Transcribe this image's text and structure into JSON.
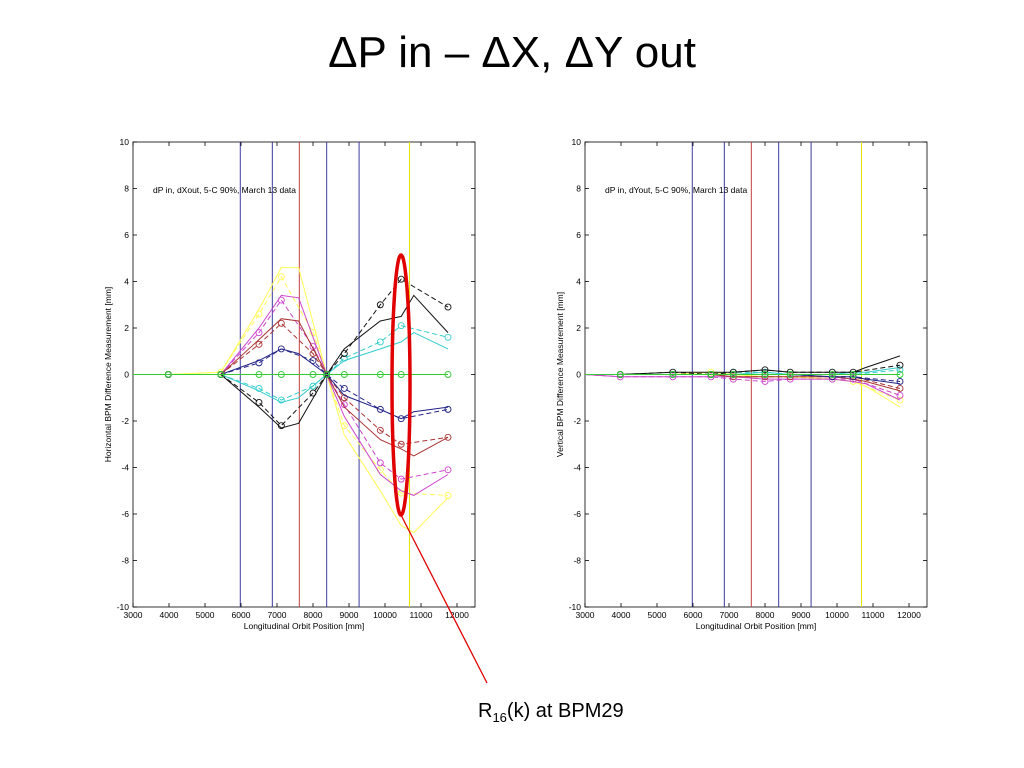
{
  "slide": {
    "title": "ΔP in – ΔX, ΔY out",
    "annotation": {
      "text_main": "R",
      "text_sub": "16",
      "text_rest": "(k) at BPM29",
      "color": "#e00000"
    }
  },
  "chart_data": [
    {
      "type": "line",
      "ylabel": "Horizontal BPM Difference Measurement [mm]",
      "xlabel": "Longitudinal Orbit Position [mm]",
      "annotation": "dP in, dXout, 5-C 90%, March 13 data",
      "xlim": [
        3000,
        12500
      ],
      "ylim": [
        -10,
        10
      ],
      "x_ticks": [
        "3000",
        "4000",
        "5000",
        "6000",
        "7000",
        "8000",
        "9000",
        "10000",
        "11000",
        "12000"
      ],
      "y_ticks": [
        "-10",
        "-8",
        "-6",
        "-4",
        "-2",
        "0",
        "2",
        "4",
        "6",
        "8",
        "10"
      ],
      "vlines": [
        {
          "x": 5980,
          "color": "#3a3aa0"
        },
        {
          "x": 6870,
          "color": "#3a3aa0"
        },
        {
          "x": 7620,
          "color": "#c04040"
        },
        {
          "x": 8380,
          "color": "#3a3aa0"
        },
        {
          "x": 9280,
          "color": "#3a3aa0"
        },
        {
          "x": 10680,
          "color": "#e6e600"
        }
      ],
      "series": [
        {
          "color": "#ffff55",
          "measured": {
            "x": [
              3000,
              3980,
              5440,
              6500,
              7120,
              8000,
              8380,
              8870,
              9870,
              10450,
              11750
            ],
            "y": [
              0,
              0,
              0.1,
              2.6,
              4.2,
              1.8,
              0,
              -2.2,
              -4.1,
              -5.1,
              -5.2
            ]
          },
          "model": {
            "x": [
              3000,
              3980,
              5440,
              6500,
              7120,
              7600,
              8380,
              8870,
              9870,
              10450,
              10800,
              11750
            ],
            "y": [
              0,
              0,
              0.1,
              2.8,
              4.6,
              4.6,
              0,
              -2.6,
              -5.0,
              -6.5,
              -6.8,
              -5.3
            ]
          }
        },
        {
          "color": "#cc44cc",
          "measured": {
            "x": [
              3000,
              3980,
              5440,
              6500,
              7120,
              8000,
              8380,
              8870,
              9870,
              10450,
              11750
            ],
            "y": [
              0,
              0,
              0,
              1.8,
              3.2,
              1.2,
              0,
              -1.3,
              -3.8,
              -4.5,
              -4.1
            ]
          },
          "model": {
            "x": [
              3000,
              3980,
              5440,
              6500,
              7120,
              7600,
              8380,
              8870,
              9870,
              10450,
              10800,
              11750
            ],
            "y": [
              0,
              0,
              0,
              2.0,
              3.4,
              3.3,
              0,
              -1.8,
              -4.3,
              -5.0,
              -5.2,
              -4.3
            ]
          }
        },
        {
          "color": "#aa3333",
          "measured": {
            "x": [
              3000,
              3980,
              5440,
              6500,
              7120,
              8000,
              8380,
              8870,
              9870,
              10450,
              11750
            ],
            "y": [
              0,
              0,
              0,
              1.3,
              2.2,
              0.9,
              0,
              -1.0,
              -2.4,
              -3.0,
              -2.7
            ]
          },
          "model": {
            "x": [
              3000,
              3980,
              5440,
              6500,
              7120,
              7600,
              8380,
              8870,
              9870,
              10450,
              10800,
              11750
            ],
            "y": [
              0,
              0,
              0,
              1.5,
              2.4,
              2.3,
              0,
              -1.4,
              -2.8,
              -3.2,
              -3.5,
              -2.7
            ]
          }
        },
        {
          "color": "#222288",
          "measured": {
            "x": [
              3000,
              3980,
              5440,
              6500,
              7120,
              8000,
              8380,
              8870,
              9870,
              10450,
              11750
            ],
            "y": [
              0,
              0,
              0,
              0.5,
              1.1,
              0.6,
              0,
              -0.6,
              -1.5,
              -1.9,
              -1.5
            ]
          },
          "model": {
            "x": [
              3000,
              3980,
              5440,
              6500,
              7120,
              7600,
              8380,
              8870,
              9870,
              10450,
              10800,
              11750
            ],
            "y": [
              0,
              0,
              0,
              0.6,
              1.1,
              0.9,
              0,
              -0.9,
              -1.5,
              -1.9,
              -1.6,
              -1.4
            ]
          }
        },
        {
          "color": "#33cccc",
          "measured": {
            "x": [
              3000,
              3980,
              5440,
              6500,
              7120,
              8000,
              8380,
              8870,
              9870,
              10450,
              11750
            ],
            "y": [
              0,
              0,
              0,
              -0.6,
              -1.1,
              -0.5,
              0,
              0.7,
              1.4,
              2.1,
              1.6
            ]
          },
          "model": {
            "x": [
              3000,
              3980,
              5440,
              6500,
              7120,
              7600,
              8380,
              8870,
              9870,
              10450,
              10800,
              11750
            ],
            "y": [
              0,
              0,
              0,
              -0.7,
              -1.2,
              -1.0,
              0,
              0.6,
              1.1,
              1.4,
              1.8,
              1.1
            ]
          }
        },
        {
          "color": "#111111",
          "measured": {
            "x": [
              3000,
              3980,
              5440,
              6500,
              7120,
              8000,
              8380,
              8870,
              9870,
              10450,
              11750
            ],
            "y": [
              0,
              0,
              0,
              -1.2,
              -2.2,
              -0.8,
              0,
              0.9,
              3.0,
              4.1,
              2.9
            ]
          },
          "model": {
            "x": [
              3000,
              3980,
              5440,
              6500,
              7120,
              7600,
              8380,
              8870,
              9870,
              10450,
              10800,
              11750
            ],
            "y": [
              0,
              0,
              0,
              -1.4,
              -2.3,
              -2.1,
              0,
              1.1,
              2.3,
              2.5,
              3.4,
              1.8
            ]
          }
        },
        {
          "color": "#33cc33",
          "measured": {
            "x": [
              3000,
              3980,
              5440,
              6500,
              7120,
              8000,
              8380,
              8870,
              9870,
              10450,
              11750
            ],
            "y": [
              0,
              0,
              0,
              0,
              0,
              0,
              0,
              0,
              0,
              0,
              0
            ]
          },
          "model": {
            "x": [
              3000,
              11750
            ],
            "y": [
              0,
              0
            ]
          }
        }
      ]
    },
    {
      "type": "line",
      "ylabel": "Vertical BPM Difference Measurement [mm]",
      "xlabel": "Longitudinal Orbit Position [mm]",
      "annotation": "dP in, dYout, 5-C 90%, March 13 data",
      "xlim": [
        3000,
        12500
      ],
      "ylim": [
        -10,
        10
      ],
      "x_ticks": [
        "3000",
        "4000",
        "5000",
        "6000",
        "7000",
        "8000",
        "9000",
        "10000",
        "11000",
        "12000"
      ],
      "y_ticks": [
        "-10",
        "-8",
        "-6",
        "-4",
        "-2",
        "0",
        "2",
        "4",
        "6",
        "8",
        "10"
      ],
      "vlines": [
        {
          "x": 5980,
          "color": "#3a3aa0"
        },
        {
          "x": 6870,
          "color": "#3a3aa0"
        },
        {
          "x": 7620,
          "color": "#c04040"
        },
        {
          "x": 8380,
          "color": "#3a3aa0"
        },
        {
          "x": 9280,
          "color": "#3a3aa0"
        },
        {
          "x": 10680,
          "color": "#e6e600"
        }
      ],
      "series": [
        {
          "color": "#ffff55",
          "measured": {
            "x": [
              3000,
              3980,
              5440,
              6500,
              7120,
              8000,
              8700,
              9870,
              10450,
              11750
            ],
            "y": [
              0,
              0,
              0,
              0.1,
              0,
              -0.1,
              -0.1,
              -0.2,
              -0.3,
              -1.1
            ]
          },
          "model": {
            "x": [
              3000,
              3980,
              5440,
              6500,
              7120,
              8000,
              8700,
              9870,
              10450,
              10800,
              11750
            ],
            "y": [
              0,
              0,
              0,
              0.1,
              0,
              -0.1,
              -0.1,
              -0.2,
              -0.3,
              -0.5,
              -1.4
            ]
          }
        },
        {
          "color": "#cc44cc",
          "measured": {
            "x": [
              3000,
              3980,
              5440,
              6500,
              7120,
              8000,
              8700,
              9870,
              10450,
              11750
            ],
            "y": [
              0,
              -0.1,
              -0.1,
              -0.1,
              -0.2,
              -0.3,
              -0.2,
              -0.2,
              -0.2,
              -0.9
            ]
          },
          "model": {
            "x": [
              3000,
              3980,
              5440,
              6500,
              7120,
              8000,
              8700,
              9870,
              10450,
              10800,
              11750
            ],
            "y": [
              0,
              -0.1,
              -0.1,
              -0.1,
              -0.1,
              -0.2,
              -0.2,
              -0.2,
              -0.3,
              -0.4,
              -1.1
            ]
          }
        },
        {
          "color": "#aa3333",
          "measured": {
            "x": [
              3000,
              3980,
              5440,
              6500,
              7120,
              8000,
              8700,
              9870,
              10450,
              11750
            ],
            "y": [
              0,
              0,
              0,
              0,
              -0.1,
              -0.1,
              -0.1,
              -0.1,
              -0.1,
              -0.6
            ]
          },
          "model": {
            "x": [
              3000,
              3980,
              5440,
              6500,
              7120,
              8000,
              8700,
              9870,
              10450,
              10800,
              11750
            ],
            "y": [
              0,
              0,
              0,
              0,
              -0.1,
              -0.1,
              -0.1,
              -0.1,
              -0.2,
              -0.3,
              -0.7
            ]
          }
        },
        {
          "color": "#222288",
          "measured": {
            "x": [
              3000,
              3980,
              5440,
              6500,
              7120,
              8000,
              8700,
              9870,
              10450,
              11750
            ],
            "y": [
              0,
              0,
              0,
              0,
              0,
              0,
              0,
              -0.1,
              -0.1,
              -0.3
            ]
          },
          "model": {
            "x": [
              3000,
              3980,
              5440,
              6500,
              7120,
              8000,
              8700,
              9870,
              10450,
              10800,
              11750
            ],
            "y": [
              0,
              0,
              0,
              0,
              0,
              0,
              0,
              -0.1,
              -0.1,
              -0.2,
              -0.4
            ]
          }
        },
        {
          "color": "#33cccc",
          "measured": {
            "x": [
              3000,
              3980,
              5440,
              6500,
              7120,
              8000,
              8700,
              9870,
              10450,
              11750
            ],
            "y": [
              0,
              0,
              0,
              0,
              0.1,
              0.1,
              0,
              0,
              0,
              0.2
            ]
          },
          "model": {
            "x": [
              3000,
              3980,
              5440,
              6500,
              7120,
              8000,
              8700,
              9870,
              10450,
              10800,
              11750
            ],
            "y": [
              0,
              0,
              0,
              0,
              0,
              0.1,
              0,
              0,
              0.1,
              0.1,
              0.3
            ]
          }
        },
        {
          "color": "#111111",
          "measured": {
            "x": [
              3000,
              3980,
              5440,
              6500,
              7120,
              8000,
              8700,
              9870,
              10450,
              11750
            ],
            "y": [
              0,
              0,
              0.1,
              0,
              0.1,
              0.2,
              0.1,
              0.1,
              0.1,
              0.4
            ]
          },
          "model": {
            "x": [
              3000,
              3980,
              5440,
              6500,
              7120,
              8000,
              8700,
              9870,
              10450,
              10800,
              11750
            ],
            "y": [
              0,
              0,
              0.1,
              0.1,
              0.1,
              0.2,
              0.1,
              0.1,
              0.1,
              0.3,
              0.8
            ]
          }
        },
        {
          "color": "#33cc33",
          "measured": {
            "x": [
              3000,
              3980,
              5440,
              6500,
              7120,
              8000,
              8700,
              9870,
              10450,
              11750
            ],
            "y": [
              0,
              0,
              0,
              0,
              0,
              0,
              0,
              0,
              0,
              0
            ]
          },
          "model": {
            "x": [
              3000,
              11750
            ],
            "y": [
              0,
              0
            ]
          }
        }
      ]
    }
  ]
}
